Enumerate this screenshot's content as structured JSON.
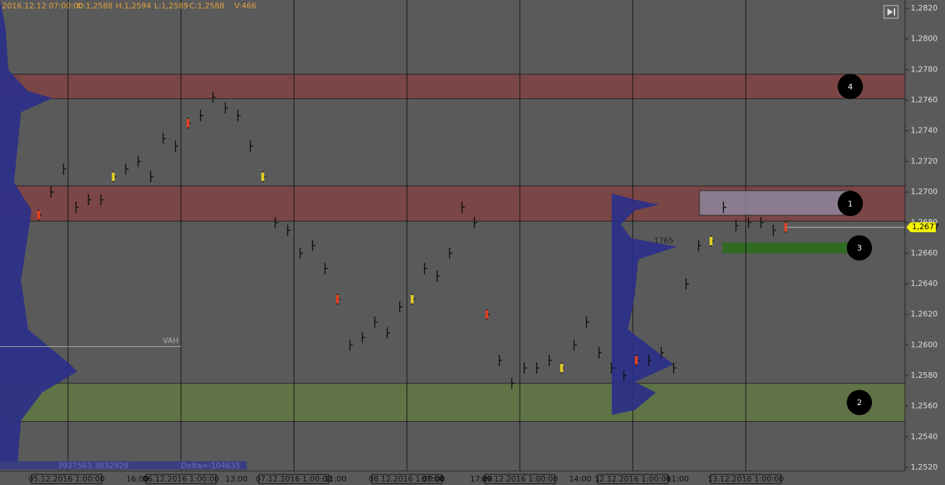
{
  "header": {
    "time": "2016.12.12 07:00:00",
    "open": "O:1,2588",
    "high": "H:1,2594",
    "low": "L:1,2589",
    "close": "C:1,2588",
    "volume": "V:466"
  },
  "y_axis": {
    "ylim": [
      1.252,
      1.282
    ],
    "yticks": [
      {
        "value": 1.252,
        "label": "1,2520"
      },
      {
        "value": 1.254,
        "label": "1,2540"
      },
      {
        "value": 1.256,
        "label": "1,2560"
      },
      {
        "value": 1.258,
        "label": "1,2580"
      },
      {
        "value": 1.26,
        "label": "1,2600"
      },
      {
        "value": 1.262,
        "label": "1,2620"
      },
      {
        "value": 1.264,
        "label": "1,2640"
      },
      {
        "value": 1.266,
        "label": "1,2660"
      },
      {
        "value": 1.268,
        "label": "1,2680"
      },
      {
        "value": 1.27,
        "label": "1,2700"
      },
      {
        "value": 1.272,
        "label": "1,2720"
      },
      {
        "value": 1.274,
        "label": "1,2740"
      },
      {
        "value": 1.276,
        "label": "1,2760"
      },
      {
        "value": 1.278,
        "label": "1,2780"
      },
      {
        "value": 1.28,
        "label": "1,2800"
      },
      {
        "value": 1.282,
        "label": "1,2820"
      }
    ]
  },
  "x_axis": {
    "labels": [
      "05.12.2016 1:00:00",
      "16:00",
      "06.12.2016 1:00:00",
      "13:00",
      "07.12.2016 1:00:00",
      "11:00",
      "08.12.2016 1:00:00",
      "07:00",
      "17:00",
      "09.12.2016 1:00:00",
      "14:00",
      "12.12.2016 1:00:00",
      "11:00",
      "13.12.2016 1:00:00"
    ]
  },
  "zones": [
    {
      "label": "4",
      "low": 1.2761,
      "high": 1.2777,
      "color": "#7b4646"
    },
    {
      "label": "1",
      "low": 1.2681,
      "high": 1.2704,
      "color": "#7b4646"
    },
    {
      "label": "3",
      "low": 1.266,
      "high": 1.2667,
      "color": "#2f6b22"
    },
    {
      "label": "2",
      "low": 1.255,
      "high": 1.2575,
      "color": "#5f7347"
    }
  ],
  "price_trace": [
    1.2685,
    1.27,
    1.2715,
    1.269,
    1.2695,
    1.2695,
    1.271,
    1.2715,
    1.272,
    1.271,
    1.2735,
    1.273,
    1.2745,
    1.275,
    1.2762,
    1.2755,
    1.275,
    1.273,
    1.271,
    1.268,
    1.2675,
    1.266,
    1.2665,
    1.265,
    1.263,
    1.26,
    1.2605,
    1.2615,
    1.2608,
    1.2625,
    1.263,
    1.265,
    1.2645,
    1.266,
    1.269,
    1.268,
    1.262,
    1.259,
    1.2575,
    1.2585,
    1.2585,
    1.259,
    1.2585,
    1.26,
    1.2615,
    1.2595,
    1.2585,
    1.258,
    1.259,
    1.259,
    1.2595,
    1.2585,
    1.264,
    1.2665,
    1.2668,
    1.269,
    1.2678,
    1.268,
    1.268,
    1.2675,
    1.2677
  ],
  "current_price": {
    "value": 1.2677,
    "label": "1,2677"
  },
  "vah": {
    "value": 1.2599,
    "label": "VAH"
  },
  "poc_volume": "1765",
  "volume_total": "3937563.3832928",
  "delta": "Delta=-104635"
}
